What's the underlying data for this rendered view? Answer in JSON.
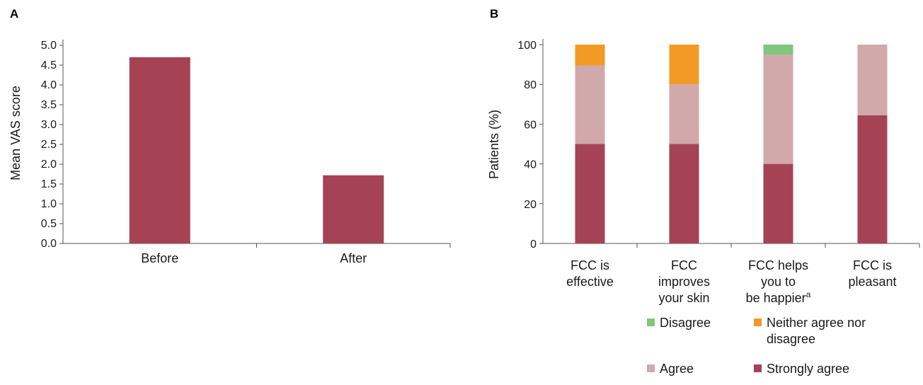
{
  "chart_data": [
    {
      "panel": "A",
      "type": "bar",
      "categories": [
        "Before",
        "After"
      ],
      "values": [
        4.7,
        1.72
      ],
      "ylabel": "Mean VAS score",
      "ylim": [
        0,
        5.0
      ],
      "yticks": [
        "0.0",
        "0.5",
        "1.0",
        "1.5",
        "2.0",
        "2.5",
        "3.0",
        "3.5",
        "4.0",
        "4.5",
        "5.0"
      ],
      "bar_color": "#a54355"
    },
    {
      "panel": "B",
      "type": "bar",
      "stacked": true,
      "categories": [
        [
          "FCC is",
          "effective"
        ],
        [
          "FCC",
          "improves",
          "your skin"
        ],
        [
          "FCC helps",
          "you to",
          "be happier"
        ],
        [
          "FCC is",
          "pleasant"
        ]
      ],
      "category_superscripts": [
        "",
        "",
        "a",
        ""
      ],
      "ylabel": "Patients (%)",
      "ylim": [
        0,
        100
      ],
      "yticks": [
        "0",
        "20",
        "40",
        "60",
        "80",
        "100"
      ],
      "series": [
        {
          "name": "Strongly agree",
          "color": "#a54355",
          "values": [
            50,
            50,
            40,
            64.5
          ]
        },
        {
          "name": "Agree",
          "color": "#d1a9ab",
          "values": [
            39.5,
            30,
            55,
            35.5
          ]
        },
        {
          "name": "Neither agree nor disagree",
          "color": "#f39a26",
          "values": [
            10.5,
            20,
            0,
            0
          ]
        },
        {
          "name": "Disagree",
          "color": "#7fc67e",
          "values": [
            0,
            0,
            5,
            0
          ]
        }
      ],
      "legend": [
        {
          "lines": [
            "Disagree"
          ],
          "color": "#7fc67e"
        },
        {
          "lines": [
            "Neither agree nor",
            "disagree"
          ],
          "color": "#f39a26"
        },
        {
          "lines": [
            "Agree"
          ],
          "color": "#d1a9ab"
        },
        {
          "lines": [
            "Strongly agree"
          ],
          "color": "#a54355"
        }
      ],
      "legend_position": "bottom"
    }
  ]
}
